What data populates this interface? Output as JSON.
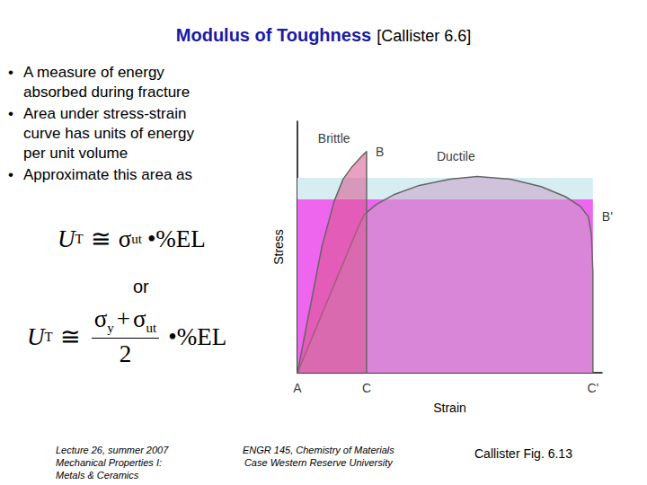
{
  "title": {
    "main": "Modulus of Toughness",
    "ref": "[Callister 6.6]"
  },
  "bullets": [
    [
      "A measure of energy",
      "absorbed during fracture"
    ],
    [
      "Area under stress-strain",
      "curve has units of energy",
      "per unit volume"
    ],
    [
      "Approximate this area as"
    ]
  ],
  "formula_1": {
    "lhs": "U",
    "lhs_sub": "T",
    "relation": "≅",
    "factor": {
      "symbol": "σ",
      "sub": "ut"
    },
    "times": "•%EL"
  },
  "connector": "or",
  "formula_2": {
    "lhs": "U",
    "lhs_sub": "T",
    "relation": "≅",
    "numerator": [
      {
        "symbol": "σ",
        "sub": "y"
      },
      {
        "op": "+"
      },
      {
        "symbol": "σ",
        "sub": "ut"
      }
    ],
    "denominator": "2",
    "times": "•%EL"
  },
  "footer": {
    "left": [
      "Lecture 26, summer 2007",
      "Mechanical Properties I:",
      "Metals & Ceramics"
    ],
    "center": [
      "ENGR 145, Chemistry of Materials",
      "Case Western Reserve University"
    ],
    "right": "Callister Fig. 6.13"
  },
  "chart_data": {
    "type": "line",
    "x_label": "Strain",
    "y_label": "Stress",
    "xlim": [
      0,
      100
    ],
    "ylim": [
      0,
      100
    ],
    "tick_labels": false,
    "grid": false,
    "bands": [
      {
        "xlim": [
          0,
          97
        ],
        "ylim": [
          0,
          69
        ],
        "color": "#ee66ee"
      },
      {
        "xlim": [
          0,
          97
        ],
        "ylim": [
          69,
          77.5
        ],
        "color": "#d6eef2"
      }
    ],
    "series": [
      {
        "color": "#c8a0c8",
        "x": [
          0,
          10,
          20,
          22,
          26,
          32,
          40,
          50,
          59,
          70,
          80,
          88,
          93,
          95.5,
          96.5,
          97,
          97
        ],
        "values": [
          0,
          29,
          58,
          63,
          67,
          71,
          74.5,
          77,
          78,
          77,
          74,
          70,
          66,
          62,
          55,
          40,
          0
        ]
      },
      {
        "color": "#d9548c",
        "x": [
          0,
          4,
          8,
          12,
          15,
          18,
          21,
          22.7,
          22.7
        ],
        "values": [
          0,
          25,
          50,
          68,
          77,
          82,
          86,
          88,
          0
        ]
      }
    ],
    "annotations": [
      {
        "text": "Brittle",
        "x": 12,
        "y": 87
      },
      {
        "text": "Ductile",
        "x": 52,
        "y": 80
      },
      {
        "text": "B",
        "x": 22.7,
        "y": 88
      },
      {
        "text": "B'",
        "x": 97,
        "y": 62
      },
      {
        "text": "A",
        "x": 0,
        "y": 0
      },
      {
        "text": "C",
        "x": 22.7,
        "y": 0
      },
      {
        "text": "C'",
        "x": 97,
        "y": 0
      }
    ]
  }
}
